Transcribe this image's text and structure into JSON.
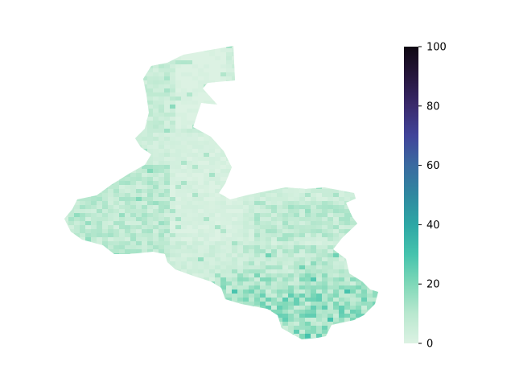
{
  "chart_data": {
    "type": "heatmap",
    "title": "",
    "xlabel": "",
    "ylabel": "",
    "colorbar": {
      "range": [
        0,
        100
      ],
      "ticks": [
        0,
        20,
        40,
        60,
        80,
        100
      ],
      "tick_labels": [
        "0",
        "20",
        "40",
        "60",
        "80",
        "100"
      ],
      "colors": [
        "#dcf2e3",
        "#b9e8cf",
        "#7fd8b8",
        "#45c3ad",
        "#2da7a5",
        "#2f88a0",
        "#3a6aa0",
        "#41449a",
        "#3a2a6d",
        "#26163d",
        "#0f0812"
      ]
    },
    "grid": false,
    "axes_visible": false,
    "value_summary": {
      "min_observed": 0,
      "max_observed": 30,
      "typical": "0-15",
      "highest_region": "south-east lobe"
    }
  }
}
